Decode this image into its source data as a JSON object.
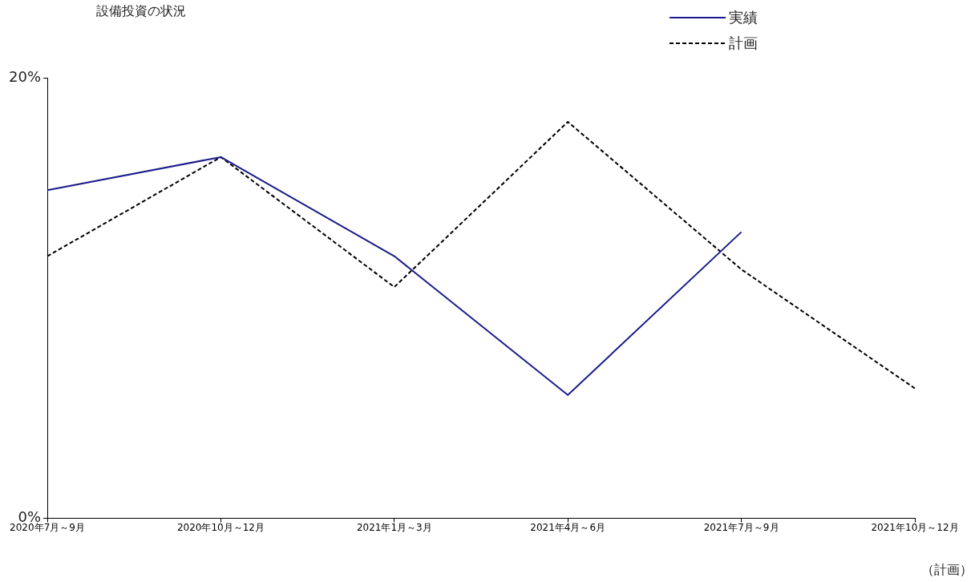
{
  "chart_data": {
    "type": "line",
    "title": "設備投資の状況",
    "categories": [
      "2020年7月～9月",
      "2020年10月～12月",
      "2021年1月～3月",
      "2021年4月～6月",
      "2021年7月～9月",
      "2021年10月～12月"
    ],
    "series": [
      {
        "name": "実績",
        "color": "#1a1a8c",
        "line_style": "solid",
        "values": [
          14.9,
          16.4,
          11.9,
          5.6,
          13.0,
          null
        ]
      },
      {
        "name": "計画",
        "color": "#000000",
        "line_style": "dashed",
        "values": [
          11.9,
          16.4,
          10.5,
          18.0,
          11.3,
          5.9
        ]
      }
    ],
    "ylim": [
      0,
      20
    ],
    "yticks": [
      {
        "value": 0,
        "label": "0%"
      },
      {
        "value": 20,
        "label": "20%"
      }
    ],
    "grid": false,
    "legend": "top right",
    "marker": "none",
    "annotations": [
      "（計画）"
    ]
  }
}
